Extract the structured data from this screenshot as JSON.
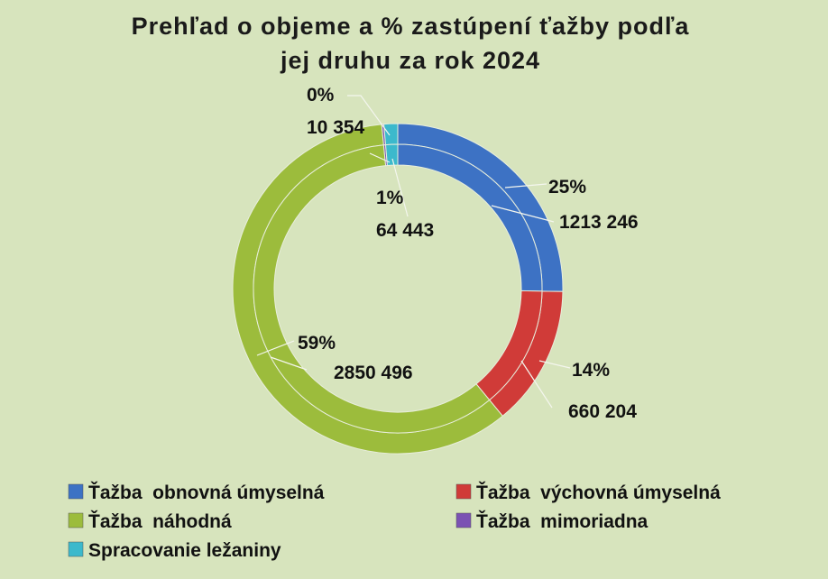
{
  "chart_data": {
    "type": "doughnut",
    "title": [
      "Prehľad o objeme a % zastúpení ťažby podľa",
      "jej druhu za rok 2024"
    ],
    "categories": [
      "Ťažba  obnovná úmyselná",
      "Ťažba  výchovná úmyselná",
      "Ťažba  náhodná",
      "Ťažba  mimoriadna",
      "Spracovanie ležaniny"
    ],
    "values": [
      1213246,
      660204,
      2850496,
      10354,
      64443
    ],
    "value_labels": [
      "1213 246",
      "660 204",
      "2850 496",
      "10 354",
      "64 443"
    ],
    "percent_labels": [
      "25%",
      "14%",
      "59%",
      "0%",
      "1%"
    ],
    "colors": [
      "#3d72c4",
      "#d03b38",
      "#9cbc3c",
      "#7b52b3",
      "#3cb9cc"
    ]
  }
}
